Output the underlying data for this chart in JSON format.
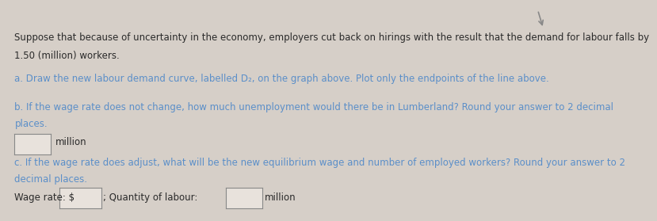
{
  "background_color": "#d6cfc8",
  "title_line1": "Suppose that because of uncertainty in the economy, employers cut back on hirings with the result that the demand for labour falls by",
  "title_line2": "1.50 (million) workers.",
  "part_a_text": "a. Draw the new labour demand curve, labelled D₂, on the graph above. Plot only the endpoints of the line above.",
  "part_b_line1": "b. If the wage rate does not change, how much unemployment would there be in Lumberland? Round your answer to 2 decimal",
  "part_b_line2": "places.",
  "part_b_label": "million",
  "part_c_line1": "c. If the wage rate does adjust, what will be the new equilibrium wage and number of employed workers? Round your answer to 2",
  "part_c_line2": "decimal places.",
  "part_c_wage_label": "Wage rate: $",
  "part_c_qty_label": "; Quantity of labour:",
  "part_c_million_label": "million",
  "link_color": "#5b8fc9",
  "normal_color": "#2a2a2a",
  "title_fontsize": 8.5,
  "body_fontsize": 8.5,
  "box_color": "#e8e2dc",
  "box_edge_color": "#888888"
}
